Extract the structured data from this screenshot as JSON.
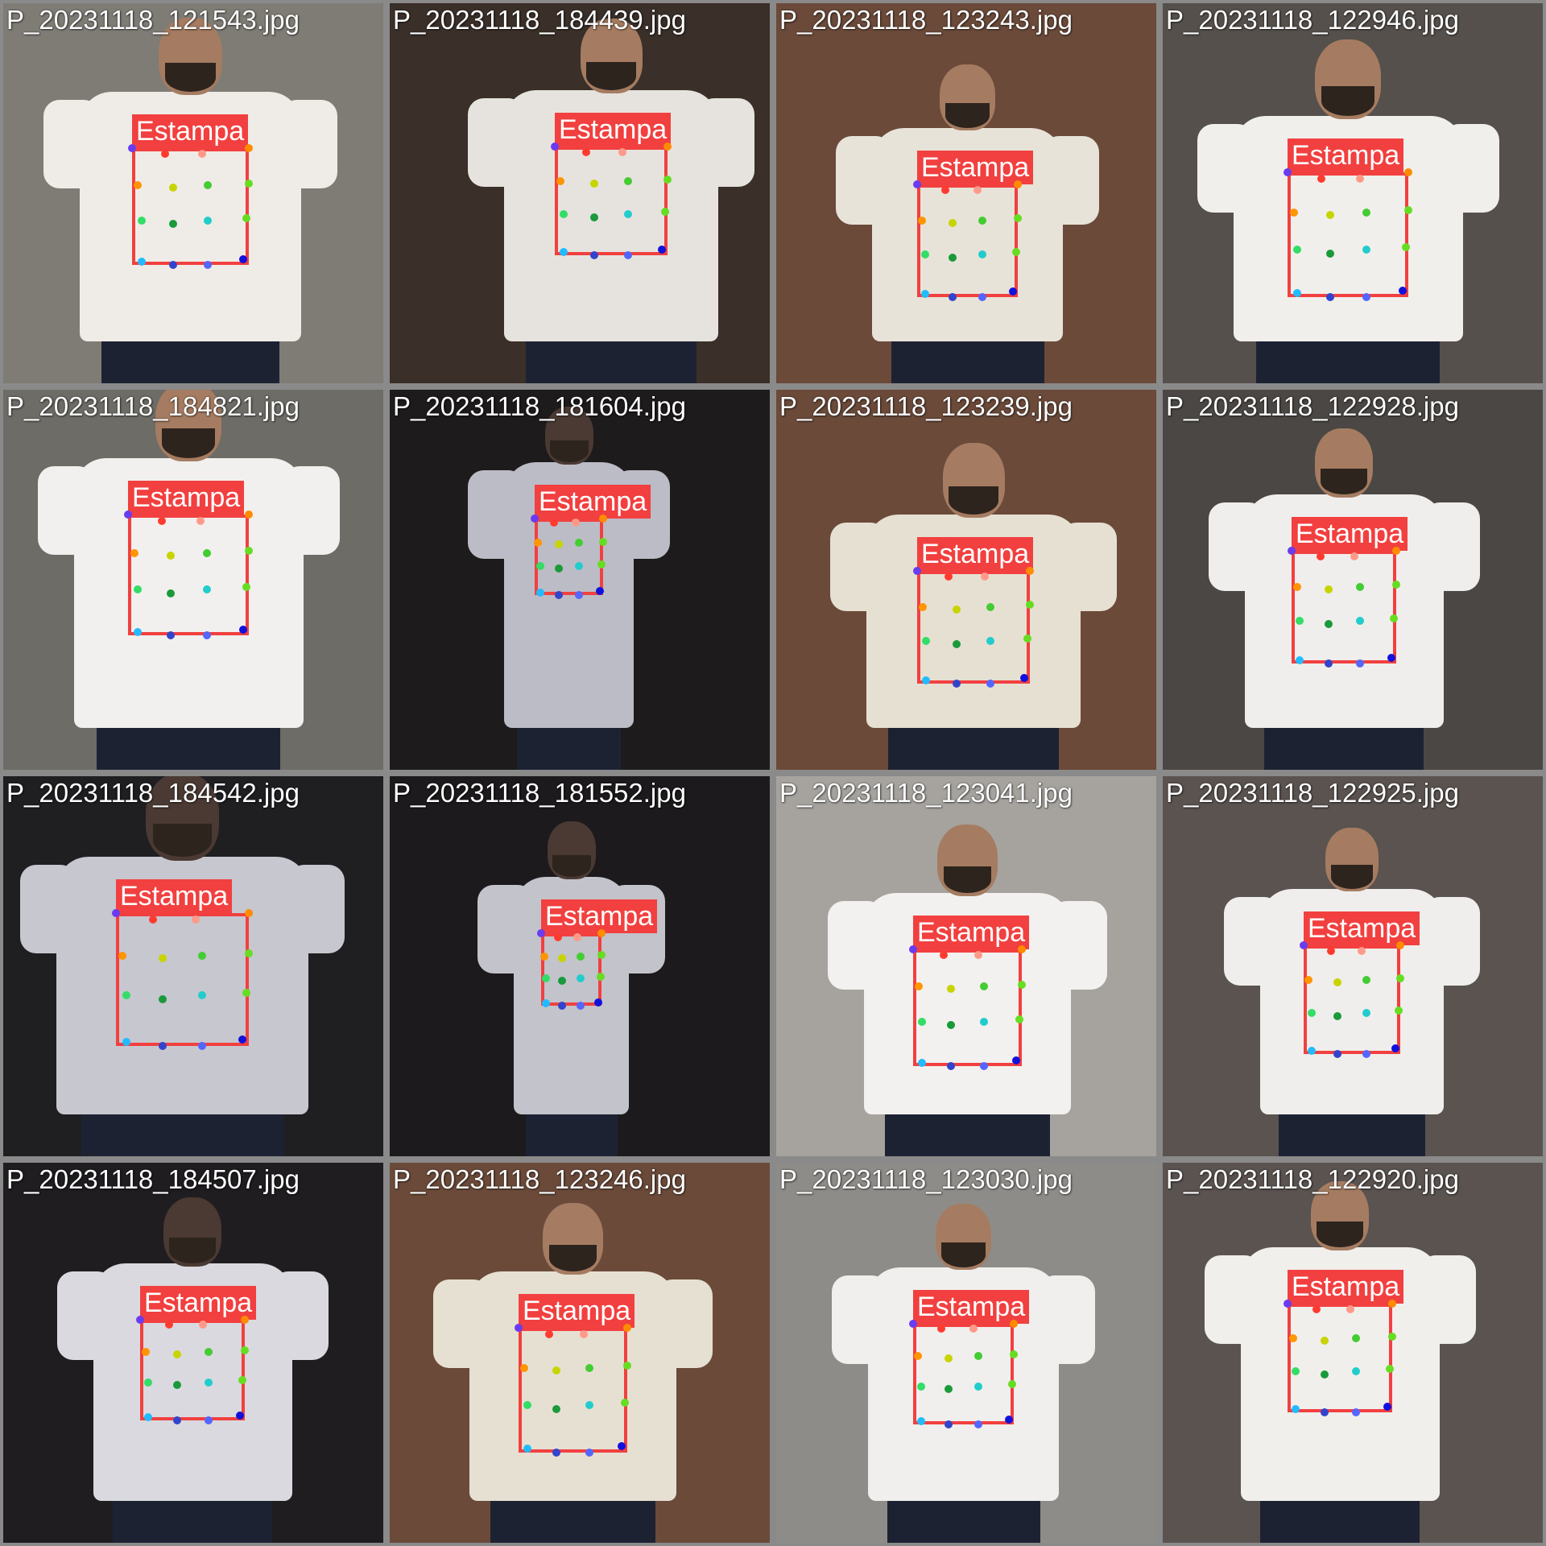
{
  "grid": {
    "images": [
      {
        "filename": "P_20231118_121543.jpg",
        "label": "Estampa"
      },
      {
        "filename": "P_20231118_184439.jpg",
        "label": "Estampa"
      },
      {
        "filename": "P_20231118_123243.jpg",
        "label": "Estampa"
      },
      {
        "filename": "P_20231118_122946.jpg",
        "label": "Estampa"
      },
      {
        "filename": "P_20231118_184821.jpg",
        "label": "Estampa"
      },
      {
        "filename": "P_20231118_181604.jpg",
        "label": "Estampa"
      },
      {
        "filename": "P_20231118_123239.jpg",
        "label": "Estampa"
      },
      {
        "filename": "P_20231118_122928.jpg",
        "label": "Estampa"
      },
      {
        "filename": "P_20231118_184542.jpg",
        "label": "Estampa"
      },
      {
        "filename": "P_20231118_181552.jpg",
        "label": "Estampa"
      },
      {
        "filename": "P_20231118_123041.jpg",
        "label": "Estampa"
      },
      {
        "filename": "P_20231118_122925.jpg",
        "label": "Estampa"
      },
      {
        "filename": "P_20231118_184507.jpg",
        "label": "Estampa"
      },
      {
        "filename": "P_20231118_123246.jpg",
        "label": "Estampa"
      },
      {
        "filename": "P_20231118_123030.jpg",
        "label": "Estampa"
      },
      {
        "filename": "P_20231118_122920.jpg",
        "label": "Estampa"
      }
    ]
  },
  "colors": {
    "box": "#f1403f",
    "keypoints": [
      "#6a3cf0",
      "#ff3b30",
      "#ff9a8a",
      "#ff8c00",
      "#ff9500",
      "#c8d400",
      "#44cc33",
      "#66dd22",
      "#33dd66",
      "#1a9a3a",
      "#22cccc",
      "#11cc88",
      "#22bbff",
      "#3344cc",
      "#5566ff",
      "#1111dd"
    ]
  }
}
